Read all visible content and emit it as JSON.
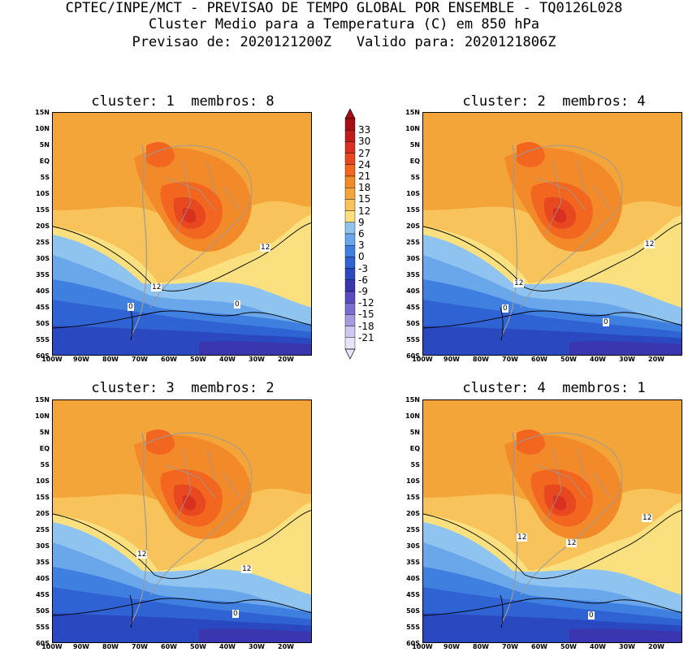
{
  "header": {
    "line1": "CPTEC/INPE/MCT - PREVISAO DE TEMPO GLOBAL POR ENSEMBLE - TQ0126L028",
    "line2": "Cluster Medio para a Temperatura (C) em 850 hPa",
    "line3": "Previsao de: 2020121200Z   Valido para: 2020121806Z"
  },
  "panels": [
    {
      "title": "cluster: 1  membros: 8",
      "labels": [
        "12",
        "12",
        "0",
        "0"
      ]
    },
    {
      "title": "cluster: 2  membros: 4",
      "labels": [
        "12",
        "12",
        "0",
        "0"
      ]
    },
    {
      "title": "cluster: 3  membros: 2",
      "labels": [
        "12",
        "12",
        "0"
      ]
    },
    {
      "title": "cluster: 4  membros: 1",
      "labels": [
        "12",
        "12",
        "12",
        "0"
      ]
    }
  ],
  "axes": {
    "lat_labels": [
      "15N",
      "10N",
      "5N",
      "EQ",
      "5S",
      "10S",
      "15S",
      "20S",
      "25S",
      "30S",
      "35S",
      "40S",
      "45S",
      "50S",
      "55S",
      "60S"
    ],
    "lon_labels": [
      "100W",
      "90W",
      "80W",
      "70W",
      "60W",
      "50W",
      "40W",
      "30W",
      "20W"
    ]
  },
  "colorbar": {
    "levels": [
      "33",
      "30",
      "27",
      "24",
      "21",
      "18",
      "15",
      "12",
      "9",
      "6",
      "3",
      "0",
      "-3",
      "-6",
      "-9",
      "-12",
      "-15",
      "-18",
      "-21"
    ],
    "colors": [
      "#a50f15",
      "#c21b1b",
      "#d9311f",
      "#e8481f",
      "#f2661f",
      "#f28a2a",
      "#f4a53a",
      "#f7c35a",
      "#fbe07f",
      "#8fc3f0",
      "#6aa6ea",
      "#3f7fe0",
      "#2f63d4",
      "#2a48c0",
      "#3a36b0",
      "#5a4cc0",
      "#7a6fd0",
      "#a59be0",
      "#cfc8f0",
      "#e8e4f8"
    ]
  }
}
